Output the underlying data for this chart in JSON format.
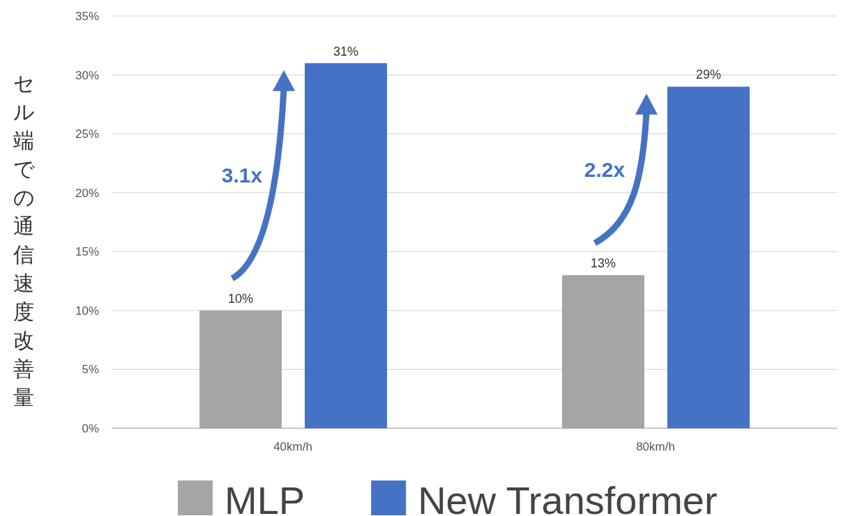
{
  "chart_data": {
    "type": "bar",
    "ylabel": "セル端での通信速度改善量",
    "categories": [
      "40km/h",
      "80km/h"
    ],
    "series": [
      {
        "name": "MLP",
        "color": "#a5a5a5",
        "values": [
          10,
          13
        ],
        "value_labels": [
          "10%",
          "13%"
        ]
      },
      {
        "name": "New Transformer",
        "color": "#4472c4",
        "values": [
          31,
          29
        ],
        "value_labels": [
          "31%",
          "29%"
        ]
      }
    ],
    "ylim": [
      0,
      35
    ],
    "yticks": [
      {
        "value": 0,
        "label": "0%"
      },
      {
        "value": 5,
        "label": "5%"
      },
      {
        "value": 10,
        "label": "10%"
      },
      {
        "value": 15,
        "label": "15%"
      },
      {
        "value": 20,
        "label": "20%"
      },
      {
        "value": 25,
        "label": "25%"
      },
      {
        "value": 30,
        "label": "30%"
      },
      {
        "value": 35,
        "label": "35%"
      }
    ],
    "grid": "y",
    "legend": "bottom",
    "annotations": [
      "3.1x",
      "2.2x"
    ]
  }
}
